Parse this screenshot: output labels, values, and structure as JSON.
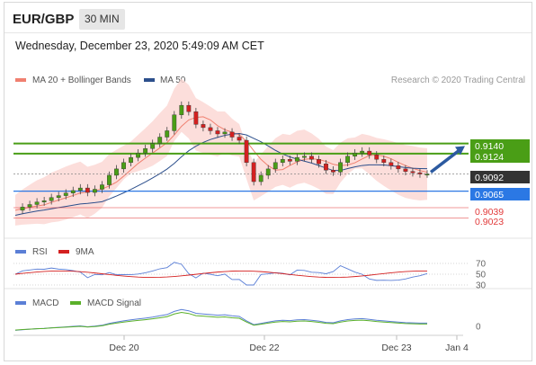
{
  "header": {
    "symbol": "EUR/GBP",
    "interval": "30 MIN"
  },
  "datetime": "Wednesday, December 23, 2020 5:49:09 AM CET",
  "legend": {
    "bollinger": "MA 20 + Bollinger Bands",
    "ma50": "MA 50",
    "credit": "Research © 2020 Trading Central",
    "rsi": "RSI",
    "nine_ma": "9MA",
    "macd": "MACD",
    "macd_signal": "MACD Signal"
  },
  "colors": {
    "bollinger": "#f08070",
    "ma50": "#2c4f8c",
    "resistance": "#4a9e16",
    "support": "#2b78e4",
    "support_red": "#e23b3b",
    "current": "#333333",
    "rsi": "#5b7fd6",
    "nine_ma": "#d42020",
    "macd": "#5b7fd6",
    "macd_signal": "#5ab02a"
  },
  "levels": [
    {
      "label": "0.9140",
      "value": 0.914,
      "kind": "resistance"
    },
    {
      "label": "0.9124",
      "value": 0.9124,
      "kind": "resistance"
    },
    {
      "label": "0.9092",
      "value": 0.9092,
      "kind": "current"
    },
    {
      "label": "0.9065",
      "value": 0.9065,
      "kind": "support"
    },
    {
      "label": "0.9039",
      "value": 0.9039,
      "kind": "support_red"
    },
    {
      "label": "0.9023",
      "value": 0.9023,
      "kind": "support_red"
    }
  ],
  "rsi_levels": [
    "70",
    "50",
    "30"
  ],
  "macd_zero": "0",
  "xaxis": [
    "Dec 20",
    "Dec 22",
    "Dec 23",
    "Jan 4"
  ],
  "chart_data": {
    "type": "candlestick",
    "ylim": [
      0.9015,
      0.922
    ],
    "close_path": [
      0.9035,
      0.904,
      0.9044,
      0.9048,
      0.905,
      0.9055,
      0.9058,
      0.9062,
      0.9066,
      0.907,
      0.9063,
      0.9068,
      0.9075,
      0.909,
      0.91,
      0.911,
      0.9118,
      0.9125,
      0.9132,
      0.914,
      0.915,
      0.916,
      0.9185,
      0.92,
      0.919,
      0.917,
      0.9165,
      0.916,
      0.9155,
      0.9158,
      0.915,
      0.9145,
      0.911,
      0.908,
      0.909,
      0.91,
      0.911,
      0.9115,
      0.9112,
      0.9118,
      0.912,
      0.9115,
      0.9108,
      0.9098,
      0.9095,
      0.911,
      0.912,
      0.9125,
      0.9128,
      0.9122,
      0.9115,
      0.911,
      0.9105,
      0.91,
      0.9096,
      0.9094,
      0.9092,
      0.9092
    ],
    "resistance": [
      0.914,
      0.9124
    ],
    "current": 0.9092,
    "support": [
      0.9065,
      0.9039,
      0.9023
    ]
  }
}
